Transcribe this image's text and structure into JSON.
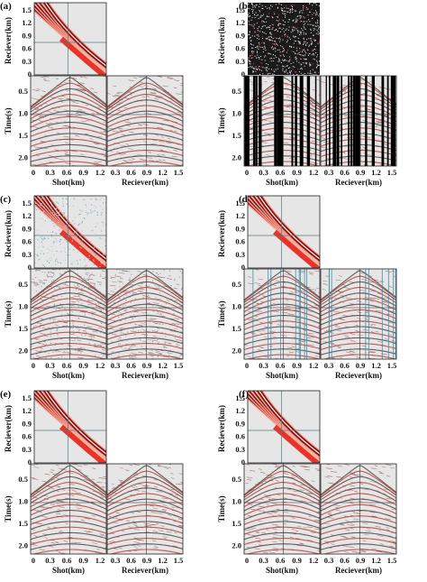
{
  "panels": [
    {
      "label": "(a)",
      "variant": "clean"
    },
    {
      "label": "(b)",
      "variant": "decimated"
    },
    {
      "label": "(c)",
      "variant": "noisy"
    },
    {
      "label": "(d)",
      "variant": "striped"
    },
    {
      "label": "(e)",
      "variant": "clean"
    },
    {
      "label": "(f)",
      "variant": "clean"
    }
  ],
  "axes": {
    "receiver_label": "Reciever(km)",
    "time_label": "Time(s)",
    "shot_label": "Shot(km)",
    "receiver_ticks": [
      "1.5",
      "1.2",
      "0.9",
      "0.6",
      "0.3",
      "0"
    ],
    "time_ticks": [
      "0.5",
      "1.0",
      "1.5",
      "2.0"
    ],
    "shot_ticks": [
      "0",
      "0.3",
      "0.6",
      "0.9",
      "1.2"
    ],
    "receiver_xticks": [
      "0.3",
      "0.6",
      "0.9",
      "1.2",
      "1.5"
    ]
  },
  "colors": {
    "background": "#e6e6e6",
    "wiggle_red": "#b02a22",
    "wiggle_dark": "#3a2a28",
    "slice_red": "#e8332a",
    "slice_dark": "#141018",
    "slice_light": "#f4b9a6",
    "stripe_blue": "#3d8ea8",
    "crosshair": "#5a7a86"
  }
}
